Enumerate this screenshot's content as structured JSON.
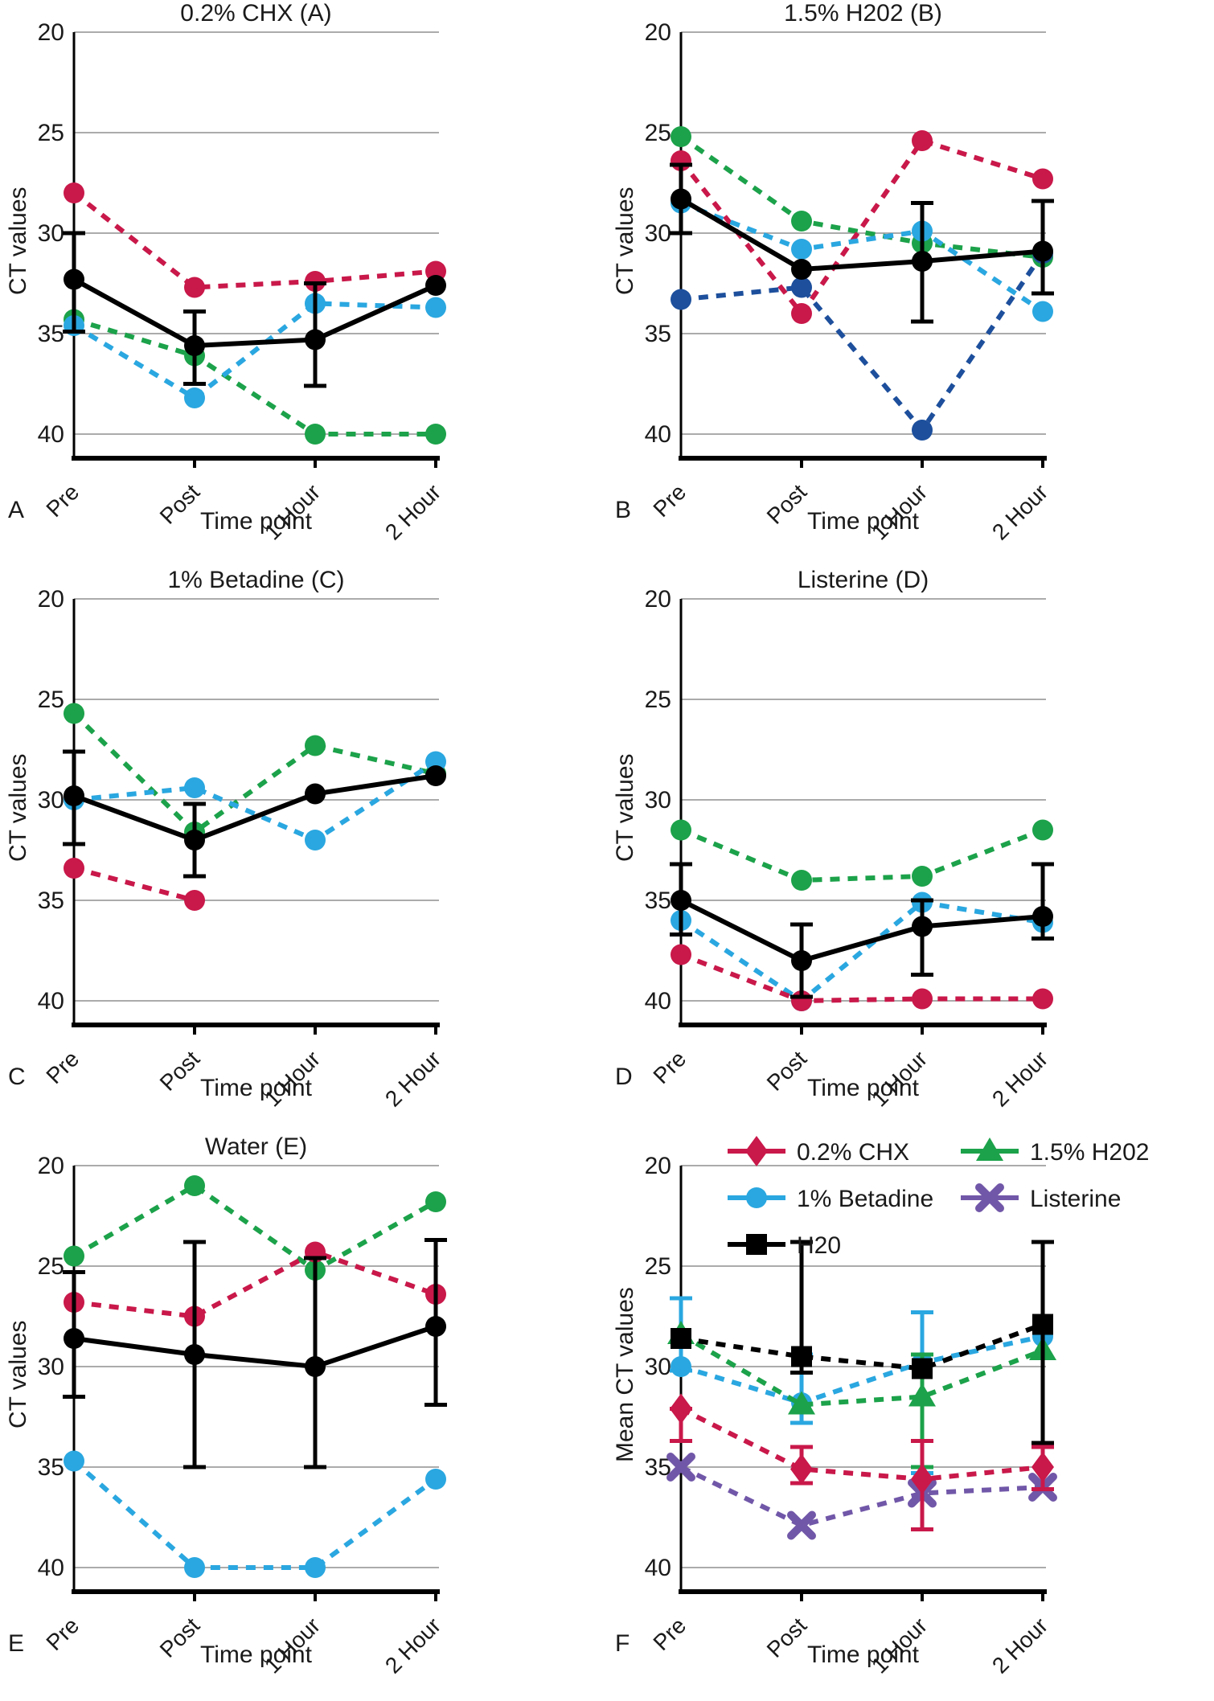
{
  "figure": {
    "x_axis_label": "Time point",
    "y_axis_label": "CT values",
    "mean_y_axis_label": "Mean CT values",
    "categories": [
      "Pre",
      "Post",
      "1 Hour",
      "2 Hour"
    ],
    "yticks": [
      20,
      25,
      30,
      35,
      40
    ]
  },
  "palette": {
    "red": "#c9184a",
    "green": "#1ca24a",
    "lightblue": "#2aa7e0",
    "navy": "#1d4f9c",
    "purple": "#7157a8",
    "black": "#000000",
    "grid": "#8f8f8f"
  },
  "chart_data": [
    {
      "id": "A",
      "type": "line",
      "title": "0.2% CHX (A)",
      "letter": "A",
      "ylabel": "CT values",
      "xlabel": "Time point",
      "categories": [
        "Pre",
        "Post",
        "1 Hour",
        "2 Hour"
      ],
      "yticks": [
        20,
        25,
        30,
        35,
        40
      ],
      "ylim": [
        20,
        41.2
      ],
      "y_inverted": true,
      "series": [
        {
          "name": "sample-red",
          "color": "#c9184a",
          "dash": true,
          "marker": "circle",
          "values": [
            28.0,
            32.7,
            32.4,
            31.9
          ]
        },
        {
          "name": "sample-green",
          "color": "#1ca24a",
          "dash": true,
          "marker": "circle",
          "values": [
            34.3,
            36.1,
            40.0,
            40.0
          ]
        },
        {
          "name": "sample-blue",
          "color": "#2aa7e0",
          "dash": true,
          "marker": "circle",
          "values": [
            34.6,
            38.2,
            33.5,
            33.7
          ]
        },
        {
          "name": "mean-black",
          "color": "#000000",
          "dash": false,
          "marker": "circle",
          "values": [
            32.3,
            35.6,
            35.3,
            32.6
          ],
          "errors": [
            [
              30.0,
              34.9
            ],
            [
              33.9,
              37.5
            ],
            [
              32.5,
              37.6
            ],
            null
          ]
        }
      ]
    },
    {
      "id": "B",
      "type": "line",
      "title": "1.5% H202 (B)",
      "letter": "B",
      "ylabel": "CT values",
      "xlabel": "Time point",
      "categories": [
        "Pre",
        "Post",
        "1 Hour",
        "2 Hour"
      ],
      "yticks": [
        20,
        25,
        30,
        35,
        40
      ],
      "ylim": [
        20,
        41.2
      ],
      "y_inverted": true,
      "series": [
        {
          "name": "sample-green",
          "color": "#1ca24a",
          "dash": true,
          "marker": "circle",
          "values": [
            25.2,
            29.4,
            30.5,
            31.2
          ]
        },
        {
          "name": "sample-red",
          "color": "#c9184a",
          "dash": true,
          "marker": "circle",
          "values": [
            26.4,
            34.0,
            25.4,
            27.3
          ]
        },
        {
          "name": "sample-lightblue",
          "color": "#2aa7e0",
          "dash": true,
          "marker": "circle",
          "values": [
            28.5,
            30.8,
            29.9,
            33.9
          ]
        },
        {
          "name": "sample-navy",
          "color": "#1d4f9c",
          "dash": true,
          "marker": "circle",
          "values": [
            33.3,
            32.7,
            39.8,
            31.0
          ]
        },
        {
          "name": "mean-black",
          "color": "#000000",
          "dash": false,
          "marker": "circle",
          "values": [
            28.3,
            31.8,
            31.4,
            30.9
          ],
          "errors": [
            [
              26.6,
              30.0
            ],
            null,
            [
              28.5,
              34.4
            ],
            [
              28.4,
              33.0
            ]
          ]
        }
      ]
    },
    {
      "id": "C",
      "type": "line",
      "title": "1% Betadine (C)",
      "letter": "C",
      "ylabel": "CT values",
      "xlabel": "Time point",
      "categories": [
        "Pre",
        "Post",
        "1 Hour",
        "2 Hour"
      ],
      "yticks": [
        20,
        25,
        30,
        35,
        40
      ],
      "ylim": [
        20,
        41.2
      ],
      "y_inverted": true,
      "series": [
        {
          "name": "sample-green",
          "color": "#1ca24a",
          "dash": true,
          "marker": "circle",
          "values": [
            25.7,
            31.6,
            27.3,
            28.7
          ]
        },
        {
          "name": "sample-blue",
          "color": "#2aa7e0",
          "dash": true,
          "marker": "circle",
          "values": [
            30.0,
            29.4,
            32.0,
            28.1
          ]
        },
        {
          "name": "sample-red",
          "color": "#c9184a",
          "dash": true,
          "marker": "circle",
          "values": [
            33.4,
            35.0,
            null,
            null
          ]
        },
        {
          "name": "mean-black",
          "color": "#000000",
          "dash": false,
          "marker": "circle",
          "values": [
            29.8,
            32.0,
            29.7,
            28.8
          ],
          "errors": [
            [
              27.6,
              32.2
            ],
            [
              30.2,
              33.8
            ],
            null,
            null
          ]
        }
      ]
    },
    {
      "id": "D",
      "type": "line",
      "title": "Listerine (D)",
      "letter": "D",
      "ylabel": "CT values",
      "xlabel": "Time point",
      "categories": [
        "Pre",
        "Post",
        "1 Hour",
        "2 Hour"
      ],
      "yticks": [
        20,
        25,
        30,
        35,
        40
      ],
      "ylim": [
        20,
        41.2
      ],
      "y_inverted": true,
      "series": [
        {
          "name": "sample-green",
          "color": "#1ca24a",
          "dash": true,
          "marker": "circle",
          "values": [
            31.5,
            34.0,
            33.8,
            31.5
          ]
        },
        {
          "name": "sample-blue",
          "color": "#2aa7e0",
          "dash": true,
          "marker": "circle",
          "values": [
            36.0,
            40.0,
            35.1,
            36.1
          ]
        },
        {
          "name": "sample-red",
          "color": "#c9184a",
          "dash": true,
          "marker": "circle",
          "values": [
            37.7,
            40.0,
            39.9,
            39.9
          ]
        },
        {
          "name": "mean-black",
          "color": "#000000",
          "dash": false,
          "marker": "circle",
          "values": [
            35.0,
            38.0,
            36.3,
            35.8
          ],
          "errors": [
            [
              33.2,
              36.7
            ],
            [
              36.2,
              39.8
            ],
            [
              35.0,
              38.7
            ],
            [
              33.2,
              36.9
            ]
          ]
        }
      ]
    },
    {
      "id": "E",
      "type": "line",
      "title": "Water (E)",
      "letter": "E",
      "ylabel": "CT values",
      "xlabel": "Time point",
      "categories": [
        "Pre",
        "Post",
        "1 Hour",
        "2 Hour"
      ],
      "yticks": [
        20,
        25,
        30,
        35,
        40
      ],
      "ylim": [
        20,
        41.2
      ],
      "y_inverted": true,
      "series": [
        {
          "name": "sample-green",
          "color": "#1ca24a",
          "dash": true,
          "marker": "circle",
          "values": [
            24.5,
            21.0,
            25.2,
            21.8
          ]
        },
        {
          "name": "sample-red",
          "color": "#c9184a",
          "dash": true,
          "marker": "circle",
          "values": [
            26.8,
            27.5,
            24.3,
            26.4
          ]
        },
        {
          "name": "sample-blue",
          "color": "#2aa7e0",
          "dash": true,
          "marker": "circle",
          "values": [
            34.7,
            40.0,
            40.0,
            35.6
          ]
        },
        {
          "name": "mean-black",
          "color": "#000000",
          "dash": false,
          "marker": "circle",
          "values": [
            28.6,
            29.4,
            30.0,
            28.0
          ],
          "errors": [
            [
              25.3,
              31.5
            ],
            [
              23.8,
              35.0
            ],
            [
              24.6,
              35.0
            ],
            [
              23.7,
              31.9
            ]
          ]
        }
      ]
    },
    {
      "id": "F",
      "type": "line",
      "title": "",
      "letter": "F",
      "ylabel": "Mean CT values",
      "xlabel": "Time point",
      "categories": [
        "Pre",
        "Post",
        "1 Hour",
        "2 Hour"
      ],
      "yticks": [
        20,
        25,
        30,
        35,
        40
      ],
      "ylim": [
        20,
        41.2
      ],
      "y_inverted": true,
      "series": [
        {
          "name": "mean-betadine",
          "color": "#2aa7e0",
          "dash": true,
          "marker": "circle",
          "values": [
            30.0,
            31.8,
            29.8,
            28.5
          ],
          "errors": [
            [
              26.6,
              30.2
            ],
            [
              29.4,
              32.8
            ],
            [
              27.3,
              35.3
            ],
            null
          ]
        },
        {
          "name": "mean-h2o2",
          "color": "#1ca24a",
          "dash": true,
          "marker": "triangle",
          "values": [
            28.4,
            31.9,
            31.5,
            29.2
          ],
          "errors": [
            null,
            null,
            [
              29.4,
              35.0
            ],
            null
          ]
        },
        {
          "name": "mean-h2o",
          "color": "#000000",
          "dash": true,
          "marker": "square",
          "values": [
            28.6,
            29.5,
            30.1,
            27.9
          ],
          "errors": [
            null,
            [
              23.8,
              30.3
            ],
            null,
            [
              23.8,
              33.8
            ]
          ]
        },
        {
          "name": "mean-listerine",
          "color": "#7157a8",
          "dash": true,
          "marker": "x",
          "values": [
            35.0,
            37.9,
            36.3,
            36.0
          ]
        },
        {
          "name": "mean-chx",
          "color": "#c9184a",
          "dash": true,
          "marker": "diamond",
          "values": [
            32.1,
            35.1,
            35.6,
            35.0
          ],
          "errors": [
            [
              32.1,
              33.7
            ],
            [
              34.0,
              35.8
            ],
            [
              33.7,
              38.1
            ],
            [
              34.0,
              36.1
            ]
          ]
        }
      ],
      "legend": {
        "position": "top",
        "items": [
          {
            "label": "0.2% CHX",
            "marker": "diamond",
            "color": "#c9184a",
            "col": 0,
            "row": 0
          },
          {
            "label": "1.5% H202",
            "marker": "triangle",
            "color": "#1ca24a",
            "col": 1,
            "row": 0
          },
          {
            "label": "1% Betadine",
            "marker": "circle",
            "color": "#2aa7e0",
            "col": 0,
            "row": 1
          },
          {
            "label": "Listerine",
            "marker": "x",
            "color": "#7157a8",
            "col": 1,
            "row": 1
          },
          {
            "label": "H20",
            "marker": "square",
            "color": "#000000",
            "col": 0,
            "row": 2
          }
        ]
      }
    }
  ]
}
